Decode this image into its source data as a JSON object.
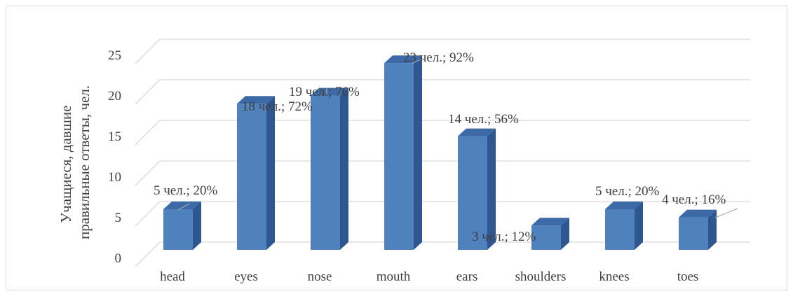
{
  "chart_data": {
    "type": "bar",
    "style": "3d-column",
    "categories": [
      "head",
      "eyes",
      "nose",
      "mouth",
      "ears",
      "shoulders",
      "knees",
      "toes"
    ],
    "values": [
      5,
      18,
      19,
      23,
      14,
      3,
      5,
      4
    ],
    "data_labels": [
      "5 чел.; 20%",
      "18 чел.; 72%",
      "19 чел.; 76%",
      "23 чел.; 92%",
      "14 чел.; 56%",
      "3 чел.; 12%",
      "5 чел.; 20%",
      "4 чел.; 16%"
    ],
    "ylabel_lines": [
      "Учащиеся, давшие",
      "правильные ответы, чел."
    ],
    "yticks": [
      0,
      5,
      10,
      15,
      20,
      25
    ],
    "ylim": [
      0,
      25
    ],
    "grid": true,
    "legend": "none",
    "colors": {
      "bar_front": "#4f81bd",
      "bar_side": "#2e5690",
      "bar_top": "#3b6aa6",
      "grid": "#d9d9d9",
      "text": "#404040"
    }
  }
}
